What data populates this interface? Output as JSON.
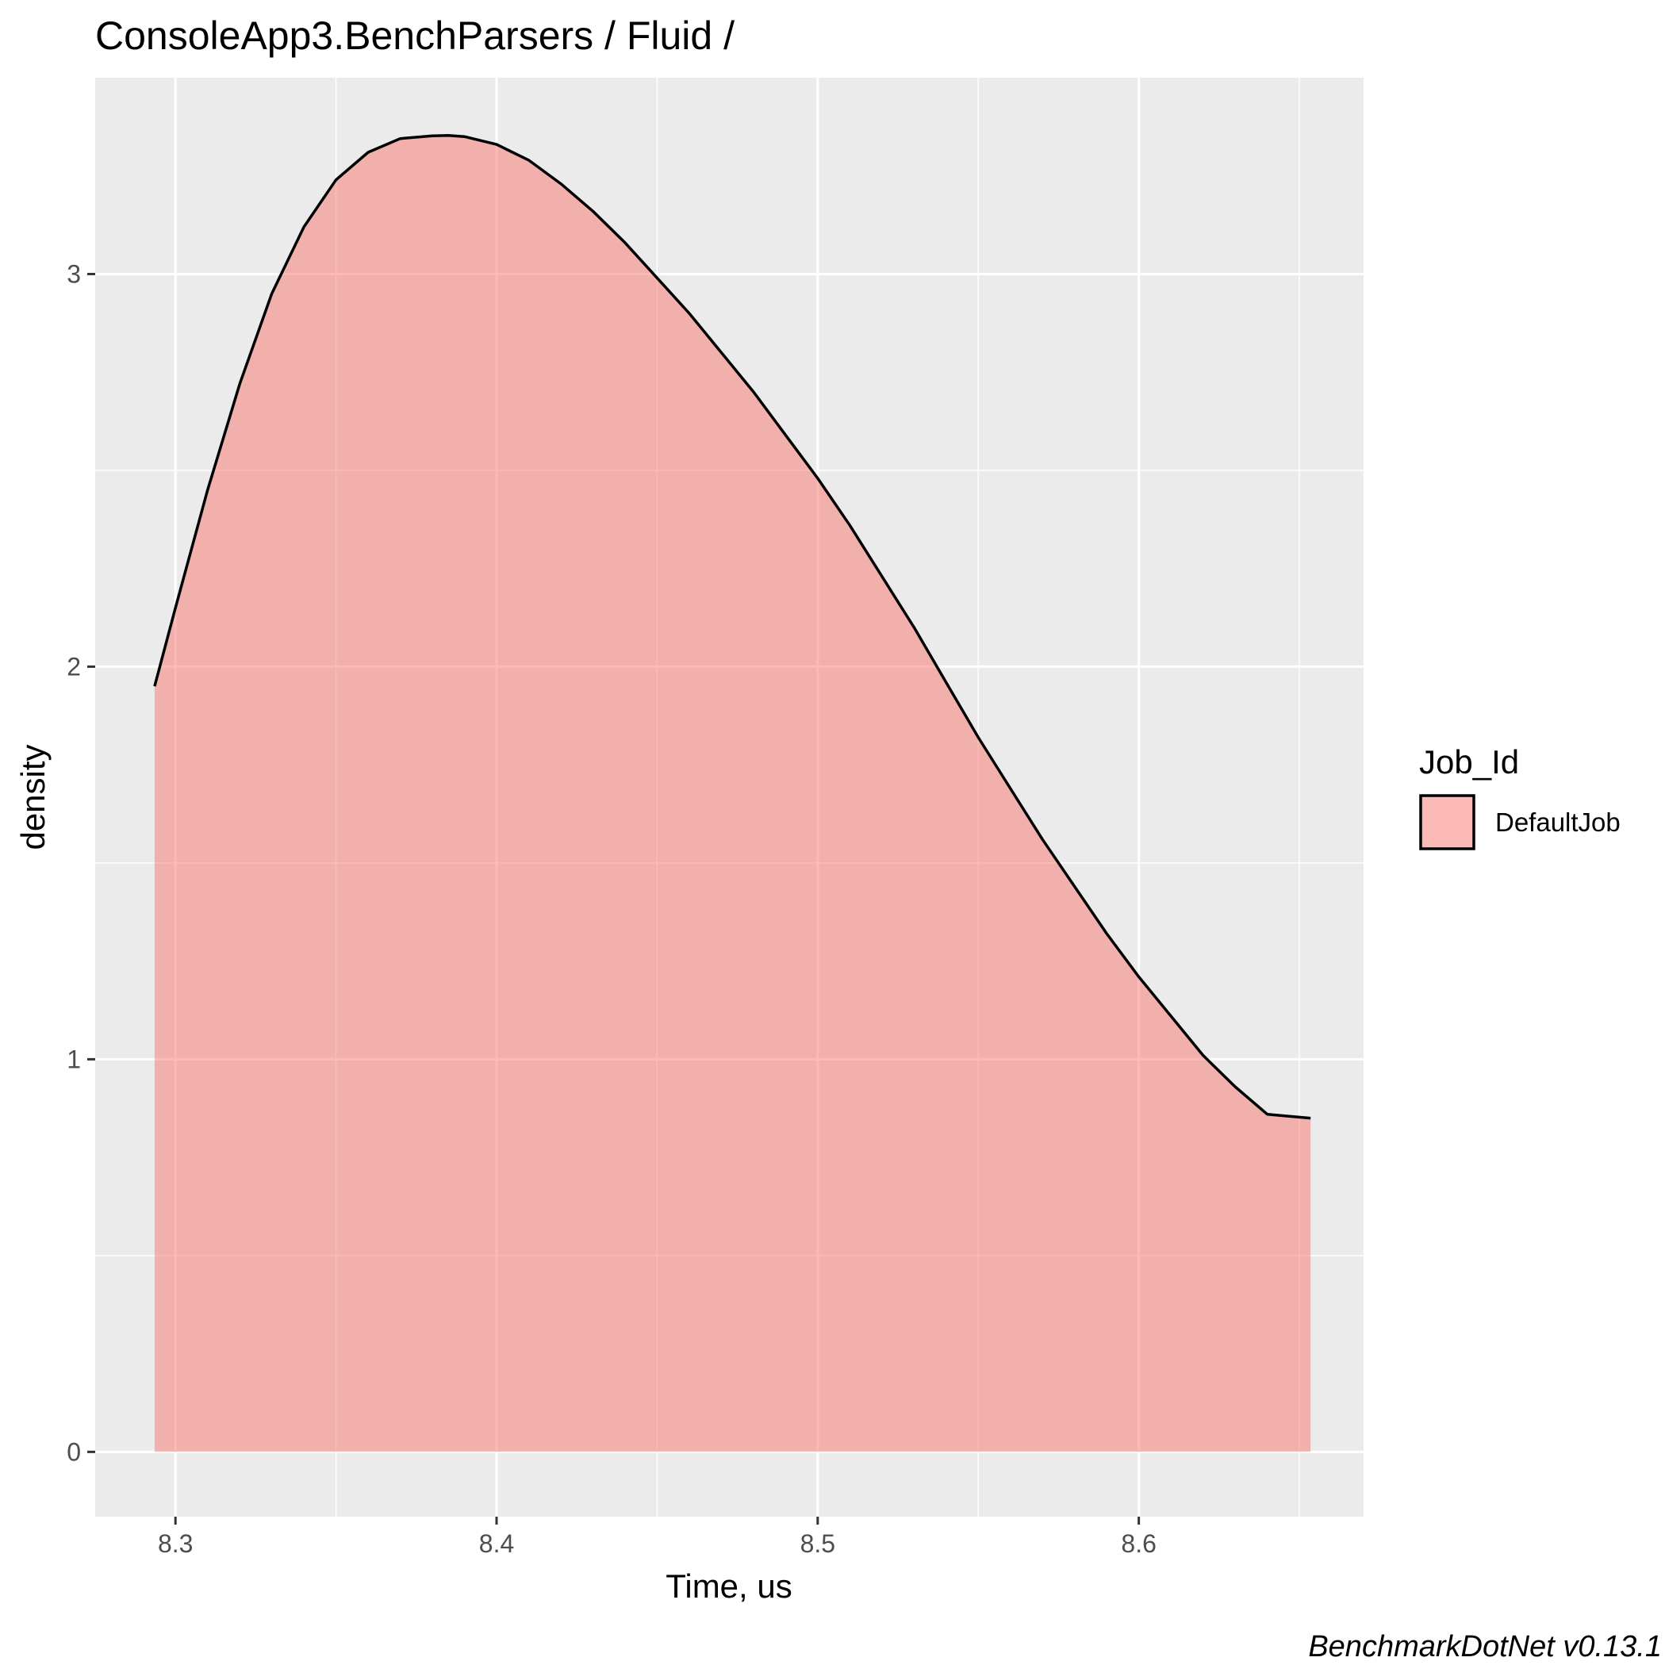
{
  "chart_data": {
    "type": "area",
    "title": "ConsoleApp3.BenchParsers / Fluid /",
    "xlabel": "Time, us",
    "ylabel": "density",
    "caption": "BenchmarkDotNet v0.13.1",
    "xlim": [
      8.275,
      8.67
    ],
    "ylim": [
      -0.165,
      3.5
    ],
    "x_ticks": [
      8.3,
      8.4,
      8.5,
      8.6
    ],
    "x_tick_labels": [
      "8.3",
      "8.4",
      "8.5",
      "8.6"
    ],
    "x_minor_ticks": [
      8.35,
      8.45,
      8.55,
      8.65
    ],
    "y_ticks": [
      0,
      1,
      2,
      3
    ],
    "y_tick_labels": [
      "0",
      "1",
      "2",
      "3"
    ],
    "y_minor_ticks": [
      0.5,
      1.5,
      2.5
    ],
    "grid": true,
    "legend": {
      "title": "Job_Id",
      "position": "right"
    },
    "series": [
      {
        "name": "DefaultJob",
        "fill": "#F8766D",
        "fill_opacity": 0.5,
        "stroke": "#000000",
        "x": [
          8.2935,
          8.3,
          8.31,
          8.32,
          8.33,
          8.34,
          8.35,
          8.36,
          8.37,
          8.38,
          8.385,
          8.39,
          8.4,
          8.41,
          8.42,
          8.43,
          8.44,
          8.45,
          8.46,
          8.47,
          8.48,
          8.49,
          8.5,
          8.51,
          8.52,
          8.53,
          8.54,
          8.55,
          8.56,
          8.57,
          8.58,
          8.59,
          8.6,
          8.61,
          8.62,
          8.63,
          8.64,
          8.6535
        ],
        "y": [
          1.95,
          2.15,
          2.45,
          2.72,
          2.95,
          3.12,
          3.24,
          3.31,
          3.345,
          3.352,
          3.353,
          3.35,
          3.33,
          3.29,
          3.23,
          3.16,
          3.08,
          2.99,
          2.9,
          2.8,
          2.7,
          2.59,
          2.48,
          2.36,
          2.23,
          2.1,
          1.96,
          1.82,
          1.69,
          1.56,
          1.44,
          1.32,
          1.21,
          1.11,
          1.01,
          0.93,
          0.86,
          0.85
        ]
      }
    ]
  },
  "colors": {
    "panel_background": "#EBEBEB",
    "grid": "#FFFFFF",
    "density_fill": "#F8766D"
  }
}
